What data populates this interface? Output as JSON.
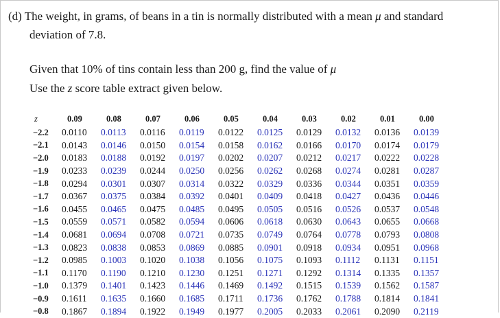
{
  "question": {
    "line1_prefix": "(d) The weight, in grams, of beans in a tin is normally distributed with a mean",
    "mu": "μ",
    "line1_suffix": "and standard",
    "line2": "deviation of 7.8.",
    "line3_prefix": "Given that 10% of tins contain less than 200 g, find the value of",
    "line4_prefix": "Use the",
    "z_symbol": "z",
    "line4_suffix": "score table extract given below."
  },
  "table": {
    "headers": [
      "z",
      "0.09",
      "0.08",
      "0.07",
      "0.06",
      "0.05",
      "0.04",
      "0.03",
      "0.02",
      "0.01",
      "0.00"
    ],
    "colors": {
      "blue": "#2a33b8",
      "black": "#1a1a1a"
    },
    "rows": [
      {
        "z": "−2.2",
        "values": [
          "0.0110",
          "0.0113",
          "0.0116",
          "0.0119",
          "0.0122",
          "0.0125",
          "0.0129",
          "0.0132",
          "0.0136",
          "0.0139"
        ]
      },
      {
        "z": "−2.1",
        "values": [
          "0.0143",
          "0.0146",
          "0.0150",
          "0.0154",
          "0.0158",
          "0.0162",
          "0.0166",
          "0.0170",
          "0.0174",
          "0.0179"
        ]
      },
      {
        "z": "−2.0",
        "values": [
          "0.0183",
          "0.0188",
          "0.0192",
          "0.0197",
          "0.0202",
          "0.0207",
          "0.0212",
          "0.0217",
          "0.0222",
          "0.0228"
        ]
      },
      {
        "z": "−1.9",
        "values": [
          "0.0233",
          "0.0239",
          "0.0244",
          "0.0250",
          "0.0256",
          "0.0262",
          "0.0268",
          "0.0274",
          "0.0281",
          "0.0287"
        ]
      },
      {
        "z": "−1.8",
        "values": [
          "0.0294",
          "0.0301",
          "0.0307",
          "0.0314",
          "0.0322",
          "0.0329",
          "0.0336",
          "0.0344",
          "0.0351",
          "0.0359"
        ]
      },
      {
        "z": "−1.7",
        "values": [
          "0.0367",
          "0.0375",
          "0.0384",
          "0.0392",
          "0.0401",
          "0.0409",
          "0.0418",
          "0.0427",
          "0.0436",
          "0.0446"
        ]
      },
      {
        "z": "−1.6",
        "values": [
          "0.0455",
          "0.0465",
          "0.0475",
          "0.0485",
          "0.0495",
          "0.0505",
          "0.0516",
          "0.0526",
          "0.0537",
          "0.0548"
        ]
      },
      {
        "z": "−1.5",
        "values": [
          "0.0559",
          "0.0571",
          "0.0582",
          "0.0594",
          "0.0606",
          "0.0618",
          "0.0630",
          "0.0643",
          "0.0655",
          "0.0668"
        ]
      },
      {
        "z": "−1.4",
        "values": [
          "0.0681",
          "0.0694",
          "0.0708",
          "0.0721",
          "0.0735",
          "0.0749",
          "0.0764",
          "0.0778",
          "0.0793",
          "0.0808"
        ]
      },
      {
        "z": "−1.3",
        "values": [
          "0.0823",
          "0.0838",
          "0.0853",
          "0.0869",
          "0.0885",
          "0.0901",
          "0.0918",
          "0.0934",
          "0.0951",
          "0.0968"
        ]
      },
      {
        "z": "−1.2",
        "values": [
          "0.0985",
          "0.1003",
          "0.1020",
          "0.1038",
          "0.1056",
          "0.1075",
          "0.1093",
          "0.1112",
          "0.1131",
          "0.1151"
        ]
      },
      {
        "z": "−1.1",
        "values": [
          "0.1170",
          "0.1190",
          "0.1210",
          "0.1230",
          "0.1251",
          "0.1271",
          "0.1292",
          "0.1314",
          "0.1335",
          "0.1357"
        ]
      },
      {
        "z": "−1.0",
        "values": [
          "0.1379",
          "0.1401",
          "0.1423",
          "0.1446",
          "0.1469",
          "0.1492",
          "0.1515",
          "0.1539",
          "0.1562",
          "0.1587"
        ]
      },
      {
        "z": "−0.9",
        "values": [
          "0.1611",
          "0.1635",
          "0.1660",
          "0.1685",
          "0.1711",
          "0.1736",
          "0.1762",
          "0.1788",
          "0.1814",
          "0.1841"
        ]
      },
      {
        "z": "−0.8",
        "values": [
          "0.1867",
          "0.1894",
          "0.1922",
          "0.1949",
          "0.1977",
          "0.2005",
          "0.2033",
          "0.2061",
          "0.2090",
          "0.2119"
        ]
      }
    ]
  }
}
